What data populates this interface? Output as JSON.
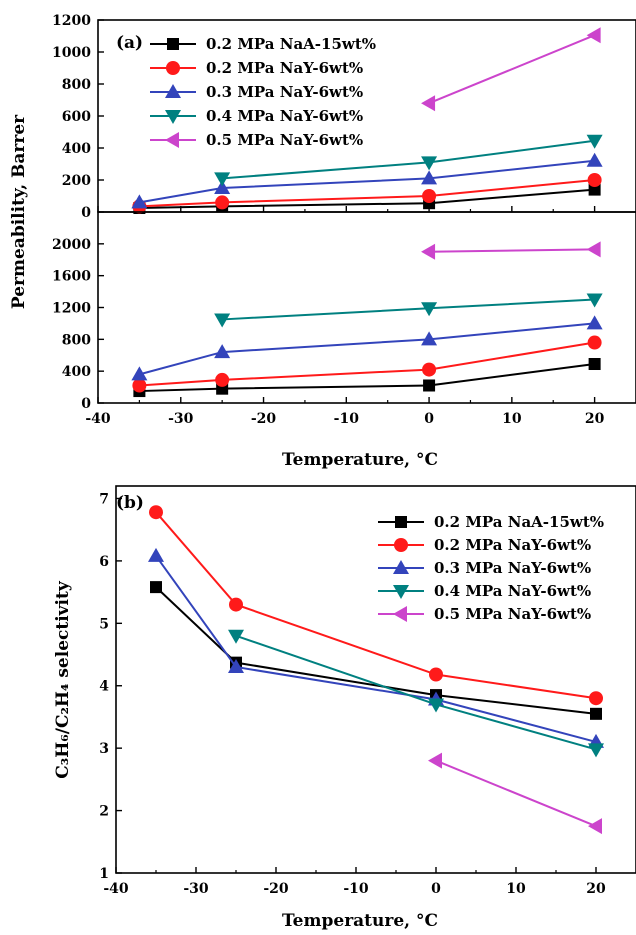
{
  "chart_data": [
    {
      "type": "line",
      "panel": "(a)",
      "xlabel": "Temperature, °C",
      "ylabel": "Permeability, Barrer",
      "xlim": [
        -40,
        25
      ],
      "xticks": [
        "-40",
        "-30",
        "-20",
        "-10",
        "0",
        "10",
        "20"
      ],
      "legend_position": "top-left",
      "subplots": [
        {
          "position": "top",
          "ylim": [
            0,
            1200
          ],
          "yticks": [
            "0",
            "200",
            "400",
            "600",
            "800",
            "1000",
            "1200"
          ],
          "series": [
            {
              "name": "0.2 MPa NaA-15wt%",
              "color": "#000000",
              "marker": "square",
              "x": [
                -35,
                -25,
                0,
                20
              ],
              "y": [
                25,
                35,
                55,
                140
              ]
            },
            {
              "name": "0.2 MPa NaY-6wt%",
              "color": "#ff1a1a",
              "marker": "circle",
              "x": [
                -35,
                -25,
                0,
                20
              ],
              "y": [
                35,
                60,
                100,
                200
              ]
            },
            {
              "name": "0.3 MPa NaY-6wt%",
              "color": "#3344bb",
              "marker": "triangle-up",
              "x": [
                -35,
                -25,
                0,
                20
              ],
              "y": [
                60,
                150,
                210,
                320
              ]
            },
            {
              "name": "0.4 MPa NaY-6wt%",
              "color": "#008080",
              "marker": "triangle-down",
              "x": [
                -25,
                0,
                20
              ],
              "y": [
                210,
                310,
                445
              ]
            },
            {
              "name": "0.5 MPa NaY-6wt%",
              "color": "#cc44cc",
              "marker": "triangle-left",
              "x": [
                0,
                20
              ],
              "y": [
                680,
                1105
              ]
            }
          ]
        },
        {
          "position": "bottom",
          "ylim": [
            0,
            2400
          ],
          "yticks": [
            "0",
            "400",
            "800",
            "1200",
            "1600",
            "2000"
          ],
          "series": [
            {
              "name": "0.2 MPa NaA-15wt%",
              "color": "#000000",
              "marker": "square",
              "x": [
                -35,
                -25,
                0,
                20
              ],
              "y": [
                150,
                180,
                220,
                490
              ]
            },
            {
              "name": "0.2 MPa NaY-6wt%",
              "color": "#ff1a1a",
              "marker": "circle",
              "x": [
                -35,
                -25,
                0,
                20
              ],
              "y": [
                220,
                290,
                420,
                760
              ]
            },
            {
              "name": "0.3 MPa NaY-6wt%",
              "color": "#3344bb",
              "marker": "triangle-up",
              "x": [
                -35,
                -25,
                0,
                20
              ],
              "y": [
                360,
                640,
                800,
                1000
              ]
            },
            {
              "name": "0.4 MPa NaY-6wt%",
              "color": "#008080",
              "marker": "triangle-down",
              "x": [
                -25,
                0,
                20
              ],
              "y": [
                1050,
                1190,
                1300
              ]
            },
            {
              "name": "0.5 MPa NaY-6wt%",
              "color": "#cc44cc",
              "marker": "triangle-left",
              "x": [
                0,
                20
              ],
              "y": [
                1900,
                1930
              ]
            }
          ]
        }
      ]
    },
    {
      "type": "line",
      "panel": "(b)",
      "xlabel": "Temperature, °C",
      "ylabel": "C₃H₆/C₂H₄ selectivity",
      "xlim": [
        -40,
        25
      ],
      "ylim": [
        1,
        7.2
      ],
      "xticks": [
        "-40",
        "-30",
        "-20",
        "-10",
        "0",
        "10",
        "20"
      ],
      "yticks": [
        "1",
        "2",
        "3",
        "4",
        "5",
        "6",
        "7"
      ],
      "legend_position": "top-right",
      "series": [
        {
          "name": "0.2 MPa NaA-15wt%",
          "color": "#000000",
          "marker": "square",
          "x": [
            -35,
            -25,
            0,
            20
          ],
          "y": [
            5.58,
            4.37,
            3.85,
            3.55
          ]
        },
        {
          "name": "0.2 MPa NaY-6wt%",
          "color": "#ff1a1a",
          "marker": "circle",
          "x": [
            -35,
            -25,
            0,
            20
          ],
          "y": [
            6.78,
            5.3,
            4.18,
            3.8
          ]
        },
        {
          "name": "0.3 MPa NaY-6wt%",
          "color": "#3344bb",
          "marker": "triangle-up",
          "x": [
            -35,
            -25,
            0,
            20
          ],
          "y": [
            6.08,
            4.3,
            3.78,
            3.1
          ]
        },
        {
          "name": "0.4 MPa NaY-6wt%",
          "color": "#008080",
          "marker": "triangle-down",
          "x": [
            -25,
            0,
            20
          ],
          "y": [
            4.8,
            3.7,
            2.98
          ]
        },
        {
          "name": "0.5 MPa NaY-6wt%",
          "color": "#cc44cc",
          "marker": "triangle-left",
          "x": [
            0,
            20
          ],
          "y": [
            2.8,
            1.75
          ]
        }
      ]
    }
  ]
}
